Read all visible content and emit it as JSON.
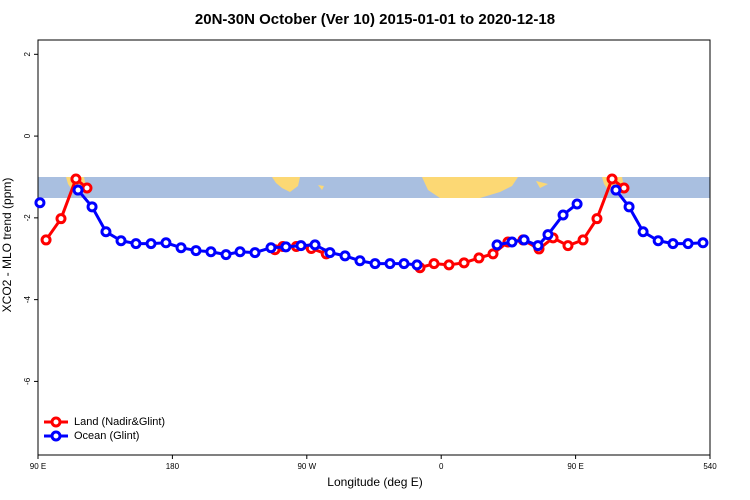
{
  "chart_data": {
    "type": "line",
    "title": "20N-30N October (Ver 10)   2015-01-01 to 2020-12-18",
    "xlabel": "Longitude (deg E)",
    "ylabel": "XCO2 - MLO trend (ppm)",
    "xlim": [
      90,
      540
    ],
    "ylim": [
      -7.8,
      2.35
    ],
    "xticks": [
      {
        "value": 90,
        "label": "90 E"
      },
      180,
      {
        "value": 270,
        "label": "90 W"
      },
      {
        "value": 360,
        "label": "0"
      },
      {
        "value": 450,
        "label": "90 E"
      },
      540
    ],
    "yticks": [
      2,
      0,
      -2,
      -4,
      -6
    ],
    "legend": "bottom-left",
    "series": [
      {
        "name": "Land (Nadir&Glint)",
        "color": "#ff0000",
        "x": [
          95.4,
          105.4,
          115.4,
          122.8,
          null,
          248.7,
          254,
          263,
          273,
          283,
          null,
          345.8,
          355.2,
          365.2,
          375.3,
          385.3,
          394.7,
          404.7,
          414.8,
          425.5,
          434.9,
          444.9,
          455,
          464.3,
          474.4,
          482.4
        ],
        "values": [
          -2.54,
          -2.02,
          -1.05,
          -1.27,
          null,
          -2.78,
          -2.7,
          -2.7,
          -2.75,
          -2.88,
          null,
          -3.22,
          -3.12,
          -3.15,
          -3.1,
          -2.98,
          -2.88,
          -2.59,
          -2.54,
          -2.76,
          -2.49,
          -2.68,
          -2.54,
          -2.02,
          -1.05,
          -1.27
        ]
      },
      {
        "name": "Ocean (Glint)",
        "color": "#0000ff",
        "x": [
          91.3,
          null,
          116.8,
          126.2,
          135.5,
          145.6,
          155.6,
          165.7,
          175.7,
          185.8,
          195.8,
          205.8,
          215.9,
          225.3,
          235.3,
          246,
          256,
          266.1,
          275.5,
          285.5,
          295.6,
          305.6,
          315.7,
          325.7,
          335.1,
          343.8,
          null,
          397.4,
          407.4,
          415.5,
          424.8,
          431.5,
          441.6,
          451,
          null,
          477,
          485.8,
          495.2,
          505.3,
          515.2,
          525.3,
          535.3
        ],
        "values": [
          -1.63,
          null,
          -1.32,
          -1.73,
          -2.34,
          -2.56,
          -2.63,
          -2.63,
          -2.61,
          -2.73,
          -2.8,
          -2.83,
          -2.9,
          -2.83,
          -2.85,
          -2.73,
          -2.71,
          -2.68,
          -2.66,
          -2.85,
          -2.93,
          -3.05,
          -3.12,
          -3.12,
          -3.12,
          -3.15,
          null,
          -2.66,
          -2.59,
          -2.54,
          -2.68,
          -2.41,
          -1.93,
          -1.66,
          null,
          -1.32,
          -1.73,
          -2.34,
          -2.56,
          -2.63,
          -2.63,
          -2.61
        ]
      }
    ]
  }
}
